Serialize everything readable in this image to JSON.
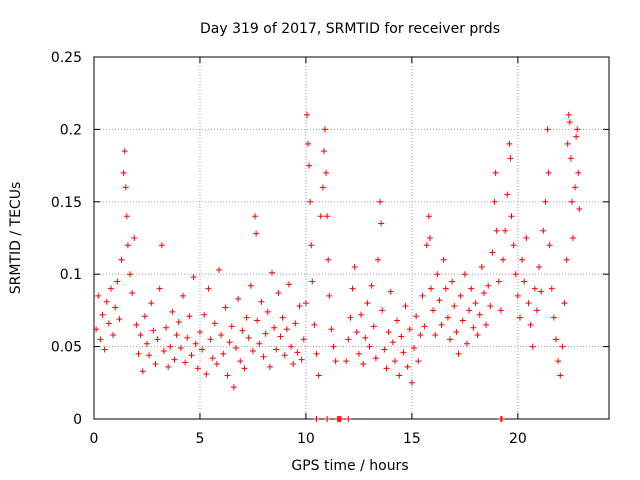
{
  "chart_data": {
    "type": "scatter",
    "title": "Day 319 of 2017, SRMTID for receiver prds",
    "xlabel": "GPS time / hours",
    "ylabel": "SRMTID / TECUs",
    "xlim": [
      0,
      24.3
    ],
    "ylim": [
      0,
      0.25
    ],
    "x_ticks": [
      0,
      5,
      10,
      15,
      20
    ],
    "x_tick_labels": [
      "0",
      "5",
      "10",
      "15",
      "20"
    ],
    "y_ticks": [
      0,
      0.05,
      0.1,
      0.15,
      0.2,
      0.25
    ],
    "y_tick_labels": [
      "0",
      "0.05",
      "0.1",
      "0.15",
      "0.2",
      "0.25"
    ],
    "grid": true,
    "marker": "+",
    "series_color": "#ff0000",
    "series": [
      {
        "name": "SRMTID",
        "points": [
          [
            0.1,
            0.062
          ],
          [
            0.2,
            0.085
          ],
          [
            0.3,
            0.055
          ],
          [
            0.4,
            0.072
          ],
          [
            0.5,
            0.048
          ],
          [
            0.6,
            0.081
          ],
          [
            0.7,
            0.066
          ],
          [
            0.8,
            0.09
          ],
          [
            0.9,
            0.058
          ],
          [
            1.0,
            0.077
          ],
          [
            1.1,
            0.095
          ],
          [
            1.2,
            0.069
          ],
          [
            1.3,
            0.11
          ],
          [
            1.4,
            0.17
          ],
          [
            1.45,
            0.185
          ],
          [
            1.5,
            0.16
          ],
          [
            1.55,
            0.14
          ],
          [
            1.6,
            0.12
          ],
          [
            1.7,
            0.1
          ],
          [
            1.8,
            0.087
          ],
          [
            1.9,
            0.125
          ],
          [
            2.0,
            0.065
          ],
          [
            2.1,
            0.045
          ],
          [
            2.2,
            0.058
          ],
          [
            2.3,
            0.033
          ],
          [
            2.4,
            0.071
          ],
          [
            2.5,
            0.052
          ],
          [
            2.6,
            0.044
          ],
          [
            2.7,
            0.08
          ],
          [
            2.8,
            0.061
          ],
          [
            2.9,
            0.038
          ],
          [
            3.0,
            0.055
          ],
          [
            3.1,
            0.09
          ],
          [
            3.2,
            0.12
          ],
          [
            3.3,
            0.047
          ],
          [
            3.4,
            0.063
          ],
          [
            3.5,
            0.036
          ],
          [
            3.6,
            0.05
          ],
          [
            3.7,
            0.074
          ],
          [
            3.8,
            0.041
          ],
          [
            3.9,
            0.058
          ],
          [
            4.0,
            0.067
          ],
          [
            4.1,
            0.049
          ],
          [
            4.2,
            0.085
          ],
          [
            4.3,
            0.039
          ],
          [
            4.4,
            0.056
          ],
          [
            4.5,
            0.071
          ],
          [
            4.6,
            0.044
          ],
          [
            4.7,
            0.098
          ],
          [
            4.8,
            0.052
          ],
          [
            4.9,
            0.035
          ],
          [
            5.0,
            0.06
          ],
          [
            5.1,
            0.048
          ],
          [
            5.2,
            0.072
          ],
          [
            5.3,
            0.031
          ],
          [
            5.4,
            0.09
          ],
          [
            5.5,
            0.055
          ],
          [
            5.6,
            0.042
          ],
          [
            5.7,
            0.066
          ],
          [
            5.8,
            0.038
          ],
          [
            5.9,
            0.103
          ],
          [
            6.0,
            0.058
          ],
          [
            6.1,
            0.045
          ],
          [
            6.2,
            0.077
          ],
          [
            6.3,
            0.03
          ],
          [
            6.4,
            0.053
          ],
          [
            6.5,
            0.064
          ],
          [
            6.6,
            0.022
          ],
          [
            6.7,
            0.049
          ],
          [
            6.8,
            0.083
          ],
          [
            6.9,
            0.04
          ],
          [
            7.0,
            0.061
          ],
          [
            7.1,
            0.035
          ],
          [
            7.2,
            0.07
          ],
          [
            7.3,
            0.056
          ],
          [
            7.4,
            0.092
          ],
          [
            7.5,
            0.047
          ],
          [
            7.6,
            0.14
          ],
          [
            7.65,
            0.128
          ],
          [
            7.7,
            0.068
          ],
          [
            7.8,
            0.052
          ],
          [
            7.9,
            0.081
          ],
          [
            8.0,
            0.043
          ],
          [
            8.1,
            0.059
          ],
          [
            8.2,
            0.074
          ],
          [
            8.3,
            0.036
          ],
          [
            8.4,
            0.101
          ],
          [
            8.5,
            0.063
          ],
          [
            8.6,
            0.048
          ],
          [
            8.7,
            0.087
          ],
          [
            8.8,
            0.057
          ],
          [
            8.9,
            0.07
          ],
          [
            9.0,
            0.044
          ],
          [
            9.1,
            0.062
          ],
          [
            9.2,
            0.093
          ],
          [
            9.3,
            0.05
          ],
          [
            9.4,
            0.038
          ],
          [
            9.5,
            0.066
          ],
          [
            9.6,
            0.046
          ],
          [
            9.7,
            0.078
          ],
          [
            9.8,
            0.041
          ],
          [
            9.9,
            0.055
          ],
          [
            10.0,
            0.08
          ],
          [
            10.05,
            0.21
          ],
          [
            10.1,
            0.19
          ],
          [
            10.15,
            0.175
          ],
          [
            10.2,
            0.15
          ],
          [
            10.25,
            0.12
          ],
          [
            10.3,
            0.095
          ],
          [
            10.4,
            0.065
          ],
          [
            10.5,
            0.045
          ],
          [
            10.6,
            0.03
          ],
          [
            10.7,
            0.14
          ],
          [
            10.8,
            0.16
          ],
          [
            10.85,
            0.185
          ],
          [
            10.9,
            0.2
          ],
          [
            10.95,
            0.17
          ],
          [
            11.0,
            0.14
          ],
          [
            11.05,
            0.11
          ],
          [
            11.1,
            0.085
          ],
          [
            11.2,
            0.062
          ],
          [
            11.3,
            0.05
          ],
          [
            11.4,
            0.04
          ],
          [
            11.9,
            0.04
          ],
          [
            12.0,
            0.055
          ],
          [
            12.1,
            0.07
          ],
          [
            12.2,
            0.09
          ],
          [
            12.3,
            0.105
          ],
          [
            12.4,
            0.06
          ],
          [
            12.5,
            0.045
          ],
          [
            12.6,
            0.072
          ],
          [
            12.7,
            0.038
          ],
          [
            12.8,
            0.056
          ],
          [
            12.9,
            0.08
          ],
          [
            13.0,
            0.05
          ],
          [
            13.1,
            0.092
          ],
          [
            13.2,
            0.064
          ],
          [
            13.3,
            0.042
          ],
          [
            13.4,
            0.11
          ],
          [
            13.5,
            0.15
          ],
          [
            13.55,
            0.135
          ],
          [
            13.6,
            0.075
          ],
          [
            13.7,
            0.048
          ],
          [
            13.8,
            0.035
          ],
          [
            13.9,
            0.06
          ],
          [
            14.0,
            0.088
          ],
          [
            14.1,
            0.053
          ],
          [
            14.2,
            0.04
          ],
          [
            14.3,
            0.068
          ],
          [
            14.4,
            0.03
          ],
          [
            14.5,
            0.057
          ],
          [
            14.6,
            0.046
          ],
          [
            14.7,
            0.078
          ],
          [
            14.8,
            0.036
          ],
          [
            14.9,
            0.062
          ],
          [
            15.0,
            0.025
          ],
          [
            15.1,
            0.049
          ],
          [
            15.2,
            0.071
          ],
          [
            15.3,
            0.04
          ],
          [
            15.4,
            0.058
          ],
          [
            15.5,
            0.085
          ],
          [
            15.6,
            0.064
          ],
          [
            15.7,
            0.12
          ],
          [
            15.8,
            0.14
          ],
          [
            15.85,
            0.125
          ],
          [
            15.9,
            0.09
          ],
          [
            16.0,
            0.075
          ],
          [
            16.1,
            0.058
          ],
          [
            16.2,
            0.1
          ],
          [
            16.3,
            0.082
          ],
          [
            16.4,
            0.065
          ],
          [
            16.5,
            0.11
          ],
          [
            16.6,
            0.09
          ],
          [
            16.7,
            0.07
          ],
          [
            16.8,
            0.055
          ],
          [
            16.9,
            0.095
          ],
          [
            17.0,
            0.078
          ],
          [
            17.1,
            0.06
          ],
          [
            17.2,
            0.045
          ],
          [
            17.3,
            0.085
          ],
          [
            17.4,
            0.068
          ],
          [
            17.5,
            0.1
          ],
          [
            17.6,
            0.052
          ],
          [
            17.7,
            0.075
          ],
          [
            17.8,
            0.09
          ],
          [
            17.9,
            0.063
          ],
          [
            18.0,
            0.08
          ],
          [
            18.1,
            0.058
          ],
          [
            18.2,
            0.072
          ],
          [
            18.3,
            0.105
          ],
          [
            18.4,
            0.087
          ],
          [
            18.5,
            0.065
          ],
          [
            18.6,
            0.092
          ],
          [
            18.7,
            0.078
          ],
          [
            18.8,
            0.115
          ],
          [
            18.9,
            0.15
          ],
          [
            18.95,
            0.17
          ],
          [
            19.0,
            0.13
          ],
          [
            19.1,
            0.095
          ],
          [
            19.2,
            0.075
          ],
          [
            19.3,
            0.11
          ],
          [
            19.4,
            0.13
          ],
          [
            19.5,
            0.155
          ],
          [
            19.6,
            0.19
          ],
          [
            19.65,
            0.18
          ],
          [
            19.7,
            0.14
          ],
          [
            19.8,
            0.12
          ],
          [
            19.9,
            0.1
          ],
          [
            20.0,
            0.085
          ],
          [
            20.1,
            0.07
          ],
          [
            20.2,
            0.11
          ],
          [
            20.3,
            0.095
          ],
          [
            20.4,
            0.125
          ],
          [
            20.5,
            0.08
          ],
          [
            20.6,
            0.065
          ],
          [
            20.7,
            0.05
          ],
          [
            20.8,
            0.09
          ],
          [
            20.9,
            0.075
          ],
          [
            21.0,
            0.105
          ],
          [
            21.1,
            0.088
          ],
          [
            21.2,
            0.13
          ],
          [
            21.3,
            0.15
          ],
          [
            21.4,
            0.2
          ],
          [
            21.45,
            0.17
          ],
          [
            21.5,
            0.12
          ],
          [
            21.6,
            0.09
          ],
          [
            21.7,
            0.07
          ],
          [
            21.8,
            0.055
          ],
          [
            21.9,
            0.04
          ],
          [
            22.0,
            0.03
          ],
          [
            22.1,
            0.05
          ],
          [
            22.2,
            0.08
          ],
          [
            22.3,
            0.11
          ],
          [
            22.35,
            0.19
          ],
          [
            22.4,
            0.21
          ],
          [
            22.45,
            0.205
          ],
          [
            22.5,
            0.18
          ],
          [
            22.55,
            0.15
          ],
          [
            22.6,
            0.125
          ],
          [
            22.7,
            0.16
          ],
          [
            22.75,
            0.195
          ],
          [
            22.8,
            0.2
          ],
          [
            22.85,
            0.17
          ],
          [
            22.9,
            0.145
          ]
        ],
        "zero_points": [
          10.5,
          11.0,
          11.5,
          11.55,
          11.6,
          11.65,
          12.0,
          19.2,
          19.25
        ]
      }
    ]
  }
}
